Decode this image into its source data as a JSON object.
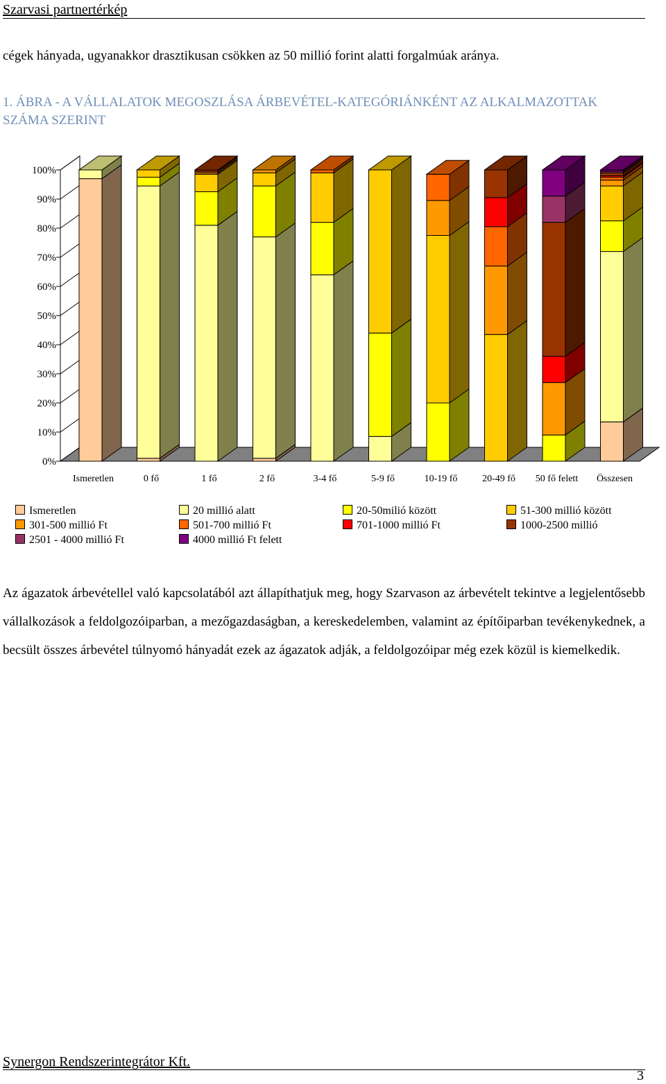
{
  "header": {
    "title": "Szarvasi partnertérkép"
  },
  "intro": "cégek hányada, ugyanakkor drasztikusan csökken az 50 millió forint alatti forgalmúak aránya.",
  "figure": {
    "title": "1. ÁBRA - A VÁLLALATOK MEGOSZLÁSA ÁRBEVÉTEL-KATEGÓRIÁNKÉNT AZ ALKALMAZOTTAK SZÁMA SZERINT"
  },
  "chart_data": {
    "type": "bar",
    "stacked": true,
    "percent": true,
    "three_d": true,
    "categories": [
      "Ismeretlen",
      "0 fő",
      "1 fő",
      "2 fő",
      "3-4 fő",
      "5-9 fő",
      "10-19 fő",
      "20-49 fő",
      "50 fő felett",
      "Összesen"
    ],
    "y_ticks": [
      "0%",
      "10%",
      "20%",
      "30%",
      "40%",
      "50%",
      "60%",
      "70%",
      "80%",
      "90%",
      "100%"
    ],
    "ylim": [
      0,
      100
    ],
    "grid": false,
    "legend_position": "bottom",
    "series": [
      {
        "name": "Ismeretlen",
        "color": "#FFCC99",
        "values": [
          97,
          1,
          0,
          1,
          0,
          0,
          0,
          0,
          0,
          13.5
        ]
      },
      {
        "name": "20 millió alatt",
        "color": "#FFFF99",
        "values": [
          3,
          93.5,
          81,
          76,
          64,
          8.5,
          0,
          0,
          0,
          58.5
        ]
      },
      {
        "name": "20-50milió között",
        "color": "#FFFF00",
        "values": [
          0,
          3,
          11.5,
          17.5,
          18,
          35.5,
          20,
          0,
          9,
          10.5
        ]
      },
      {
        "name": "51-300 millió között",
        "color": "#FFCC00",
        "values": [
          0,
          2.5,
          6,
          4.5,
          17,
          56,
          57.5,
          43.5,
          0,
          12
        ]
      },
      {
        "name": "301-500 millió Ft",
        "color": "#FF9900",
        "values": [
          0,
          0,
          0.5,
          1,
          0,
          0,
          12,
          23.5,
          18,
          2
        ]
      },
      {
        "name": "501-700 millió Ft",
        "color": "#FF6600",
        "values": [
          0,
          0,
          0.5,
          0,
          1,
          0,
          9,
          13.5,
          0,
          1
        ]
      },
      {
        "name": "701-1000 millió Ft",
        "color": "#FF0000",
        "values": [
          0,
          0,
          0,
          0,
          0,
          0,
          0,
          10,
          9,
          0.5
        ]
      },
      {
        "name": "1000-2500 millió",
        "color": "#993300",
        "values": [
          0,
          0,
          0.5,
          0,
          0,
          0,
          0,
          9.5,
          46,
          1
        ]
      },
      {
        "name": "2501 - 4000  millió Ft",
        "color": "#993366",
        "values": [
          0,
          0,
          0,
          0,
          0,
          0,
          0,
          0,
          9,
          0.5
        ]
      },
      {
        "name": "4000 millió Ft felett",
        "color": "#800080",
        "values": [
          0,
          0,
          0,
          0,
          0,
          0,
          0,
          0,
          9,
          0.5
        ]
      }
    ]
  },
  "paragraph": "Az ágazatok árbevétellel való kapcsolatából azt állapíthatjuk meg, hogy Szarvason az árbevételt tekintve a legjelentősebb vállalkozások a feldolgozóiparban, a mezőgazdaságban, a kereskedelemben, valamint az építőiparban tevékenykednek, a becsült összes árbevétel túlnyomó hányadát ezek az ágazatok adják, a feldolgozóipar még ezek közül is kiemelkedik.",
  "footer": {
    "company": "Synergon Rendszerintegrátor Kft.",
    "page_number": "3"
  }
}
